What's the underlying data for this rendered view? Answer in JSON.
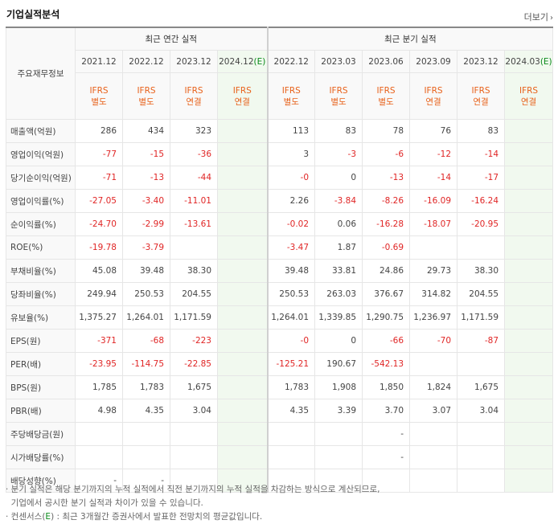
{
  "header": {
    "title": "기업실적분석",
    "more_label": "더보기",
    "more_arrow": "›"
  },
  "table": {
    "corner_label": "주요재무정보",
    "annual_group": "최근 연간 실적",
    "quarter_group": "최근 분기 실적",
    "columns": [
      {
        "period": "2021.12",
        "est": "",
        "basis": [
          "IFRS",
          "별도"
        ],
        "estimate": false
      },
      {
        "period": "2022.12",
        "est": "",
        "basis": [
          "IFRS",
          "별도"
        ],
        "estimate": false
      },
      {
        "period": "2023.12",
        "est": "",
        "basis": [
          "IFRS",
          "연결"
        ],
        "estimate": false
      },
      {
        "period": "2024.12",
        "est": "(E)",
        "basis": [
          "IFRS",
          "연결"
        ],
        "estimate": true
      },
      {
        "period": "2022.12",
        "est": "",
        "basis": [
          "IFRS",
          "별도"
        ],
        "estimate": false
      },
      {
        "period": "2023.03",
        "est": "",
        "basis": [
          "IFRS",
          "별도"
        ],
        "estimate": false
      },
      {
        "period": "2023.06",
        "est": "",
        "basis": [
          "IFRS",
          "별도"
        ],
        "estimate": false
      },
      {
        "period": "2023.09",
        "est": "",
        "basis": [
          "IFRS",
          "연결"
        ],
        "estimate": false
      },
      {
        "period": "2023.12",
        "est": "",
        "basis": [
          "IFRS",
          "연결"
        ],
        "estimate": false
      },
      {
        "period": "2024.03",
        "est": "(E)",
        "basis": [
          "IFRS",
          "연결"
        ],
        "estimate": true
      }
    ],
    "rows": [
      {
        "label": "매출액(억원)",
        "values": [
          "286",
          "434",
          "323",
          "",
          "113",
          "83",
          "78",
          "76",
          "83",
          ""
        ],
        "group_start": false
      },
      {
        "label": "영업이익(억원)",
        "values": [
          "-77",
          "-15",
          "-36",
          "",
          "3",
          "-3",
          "-6",
          "-12",
          "-14",
          ""
        ],
        "group_start": false
      },
      {
        "label": "당기순이익(억원)",
        "values": [
          "-71",
          "-13",
          "-44",
          "",
          "-0",
          "0",
          "-13",
          "-14",
          "-17",
          ""
        ],
        "group_start": false
      },
      {
        "label": "영업이익률(%)",
        "values": [
          "-27.05",
          "-3.40",
          "-11.01",
          "",
          "2.26",
          "-3.84",
          "-8.26",
          "-16.09",
          "-16.24",
          ""
        ],
        "group_start": true
      },
      {
        "label": "순이익률(%)",
        "values": [
          "-24.70",
          "-2.99",
          "-13.61",
          "",
          "-0.02",
          "0.06",
          "-16.28",
          "-18.07",
          "-20.95",
          ""
        ],
        "group_start": false
      },
      {
        "label": "ROE(%)",
        "values": [
          "-19.78",
          "-3.79",
          "",
          "",
          "-3.47",
          "1.87",
          "-0.69",
          "",
          "",
          ""
        ],
        "group_start": false
      },
      {
        "label": "부채비율(%)",
        "values": [
          "45.08",
          "39.48",
          "38.30",
          "",
          "39.48",
          "33.81",
          "24.86",
          "29.73",
          "38.30",
          ""
        ],
        "group_start": true
      },
      {
        "label": "당좌비율(%)",
        "values": [
          "249.94",
          "250.53",
          "204.55",
          "",
          "250.53",
          "263.03",
          "376.67",
          "314.82",
          "204.55",
          ""
        ],
        "group_start": false
      },
      {
        "label": "유보율(%)",
        "values": [
          "1,375.27",
          "1,264.01",
          "1,171.59",
          "",
          "1,264.01",
          "1,339.85",
          "1,290.75",
          "1,236.97",
          "1,171.59",
          ""
        ],
        "group_start": false
      },
      {
        "label": "EPS(원)",
        "values": [
          "-371",
          "-68",
          "-223",
          "",
          "-0",
          "0",
          "-66",
          "-70",
          "-87",
          ""
        ],
        "group_start": true
      },
      {
        "label": "PER(배)",
        "values": [
          "-23.95",
          "-114.75",
          "-22.85",
          "",
          "-125.21",
          "190.67",
          "-542.13",
          "",
          "",
          ""
        ],
        "group_start": false
      },
      {
        "label": "BPS(원)",
        "values": [
          "1,785",
          "1,783",
          "1,675",
          "",
          "1,783",
          "1,908",
          "1,850",
          "1,824",
          "1,675",
          ""
        ],
        "group_start": false
      },
      {
        "label": "PBR(배)",
        "values": [
          "4.98",
          "4.35",
          "3.04",
          "",
          "4.35",
          "3.39",
          "3.70",
          "3.07",
          "3.04",
          ""
        ],
        "group_start": false
      },
      {
        "label": "주당배당금(원)",
        "values": [
          "",
          "",
          "",
          "",
          "",
          "",
          "-",
          "",
          "",
          ""
        ],
        "group_start": true
      },
      {
        "label": "시가배당률(%)",
        "values": [
          "",
          "",
          "",
          "",
          "",
          "",
          "-",
          "",
          "",
          ""
        ],
        "group_start": false
      },
      {
        "label": "배당성향(%)",
        "values": [
          "-",
          "-",
          "",
          "",
          "",
          "",
          "",
          "",
          "",
          ""
        ],
        "group_start": false
      }
    ]
  },
  "notes": {
    "line1": "· 분기 실적은 해당 분기까지의 누적 실적에서 직전 분기까지의 누적 실적을 차감하는 방식으로 계산되므로,",
    "line2": "  기업에서 공시한 분기 실적과 차이가 있을 수 있습니다.",
    "line3_pre": "· 컨센서스(",
    "line3_e": "E",
    "line3_post": ") : 최근 3개월간 증권사에서 발표한 전망치의 평균값입니다."
  }
}
